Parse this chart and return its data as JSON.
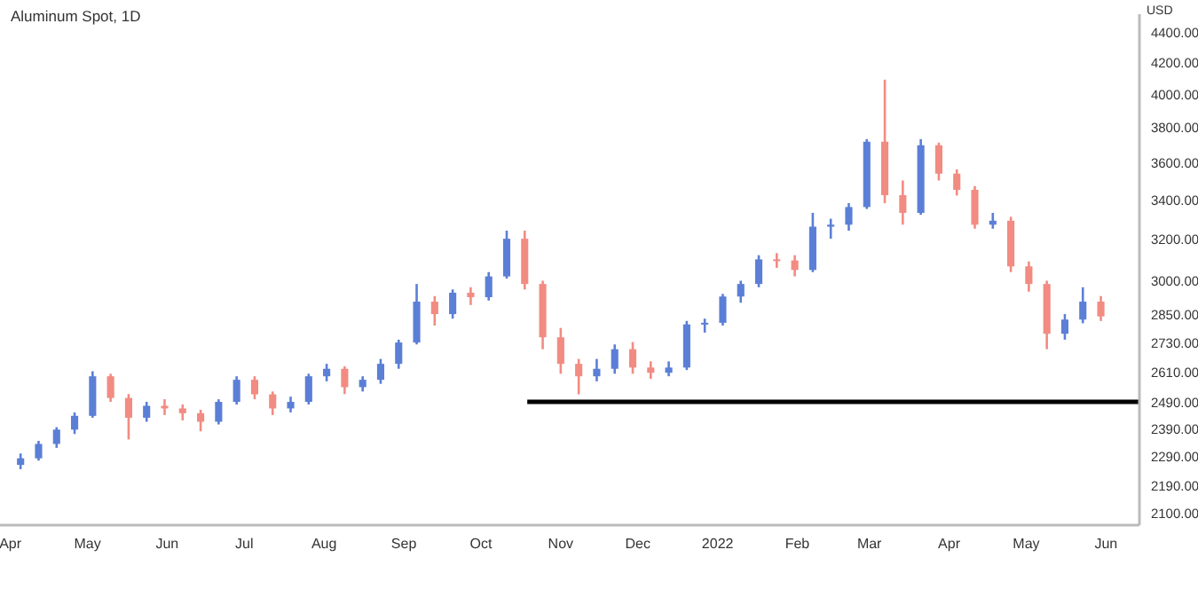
{
  "chart_data": {
    "type": "candlestick",
    "title": "Aluminum Spot, 1D",
    "ylabel": "USD",
    "log": true,
    "xlim": [
      "2021-03-28",
      "2022-06-14"
    ],
    "xticks": [
      {
        "value": "2021-04-01",
        "label": "Apr"
      },
      {
        "value": "2021-05-01",
        "label": "May"
      },
      {
        "value": "2021-06-01",
        "label": "Jun"
      },
      {
        "value": "2021-07-01",
        "label": "Jul"
      },
      {
        "value": "2021-08-01",
        "label": "Aug"
      },
      {
        "value": "2021-09-01",
        "label": "Sep"
      },
      {
        "value": "2021-10-01",
        "label": "Oct"
      },
      {
        "value": "2021-11-01",
        "label": "Nov"
      },
      {
        "value": "2021-12-01",
        "label": "Dec"
      },
      {
        "value": "2022-01-01",
        "label": "2022"
      },
      {
        "value": "2022-02-01",
        "label": "Feb"
      },
      {
        "value": "2022-03-01",
        "label": "Mar"
      },
      {
        "value": "2022-04-01",
        "label": "Apr"
      },
      {
        "value": "2022-05-01",
        "label": "May"
      },
      {
        "value": "2022-06-01",
        "label": "Jun"
      }
    ],
    "ylim": [
      2060,
      4520
    ],
    "yticks": [
      {
        "value": 2100,
        "label": "2100.00"
      },
      {
        "value": 2190,
        "label": "2190.00"
      },
      {
        "value": 2290,
        "label": "2290.00"
      },
      {
        "value": 2390,
        "label": "2390.00"
      },
      {
        "value": 2490,
        "label": "2490.00"
      },
      {
        "value": 2610,
        "label": "2610.00"
      },
      {
        "value": 2730,
        "label": "2730.00"
      },
      {
        "value": 2850,
        "label": "2850.00"
      },
      {
        "value": 3000,
        "label": "3000.00"
      },
      {
        "value": 3200,
        "label": "3200.00"
      },
      {
        "value": 3400,
        "label": "3400.00"
      },
      {
        "value": 3600,
        "label": "3600.00"
      },
      {
        "value": 3800,
        "label": "3800.00"
      },
      {
        "value": 4000,
        "label": "4000.00"
      },
      {
        "value": 4200,
        "label": "4200.00"
      },
      {
        "value": 4400,
        "label": "4400.00"
      }
    ],
    "x": [
      "2021-04-05",
      "2021-04-12",
      "2021-04-19",
      "2021-04-26",
      "2021-05-03",
      "2021-05-10",
      "2021-05-17",
      "2021-05-24",
      "2021-05-31",
      "2021-06-07",
      "2021-06-14",
      "2021-06-21",
      "2021-06-28",
      "2021-07-05",
      "2021-07-12",
      "2021-07-19",
      "2021-07-26",
      "2021-08-02",
      "2021-08-09",
      "2021-08-16",
      "2021-08-23",
      "2021-08-30",
      "2021-09-06",
      "2021-09-13",
      "2021-09-20",
      "2021-09-27",
      "2021-10-04",
      "2021-10-11",
      "2021-10-18",
      "2021-10-25",
      "2021-11-01",
      "2021-11-08",
      "2021-11-15",
      "2021-11-22",
      "2021-11-29",
      "2021-12-06",
      "2021-12-13",
      "2021-12-20",
      "2021-12-27",
      "2022-01-03",
      "2022-01-10",
      "2022-01-17",
      "2022-01-24",
      "2022-01-31",
      "2022-02-07",
      "2022-02-14",
      "2022-02-21",
      "2022-02-28",
      "2022-03-07",
      "2022-03-14",
      "2022-03-21",
      "2022-03-28",
      "2022-04-04",
      "2022-04-11",
      "2022-04-18",
      "2022-04-25",
      "2022-05-02",
      "2022-05-09",
      "2022-05-16",
      "2022-05-23",
      "2022-05-30"
    ],
    "ohlc": [
      [
        2260,
        2300,
        2245,
        2283
      ],
      [
        2283,
        2345,
        2275,
        2334
      ],
      [
        2334,
        2395,
        2320,
        2386
      ],
      [
        2386,
        2450,
        2370,
        2437
      ],
      [
        2437,
        2610,
        2430,
        2590
      ],
      [
        2590,
        2600,
        2490,
        2505
      ],
      [
        2505,
        2520,
        2350,
        2430
      ],
      [
        2430,
        2490,
        2415,
        2475
      ],
      [
        2475,
        2500,
        2440,
        2465
      ],
      [
        2465,
        2480,
        2420,
        2447
      ],
      [
        2447,
        2460,
        2380,
        2415
      ],
      [
        2415,
        2500,
        2405,
        2490
      ],
      [
        2490,
        2590,
        2480,
        2576
      ],
      [
        2576,
        2590,
        2500,
        2519
      ],
      [
        2519,
        2530,
        2440,
        2465
      ],
      [
        2465,
        2510,
        2450,
        2490
      ],
      [
        2490,
        2600,
        2480,
        2590
      ],
      [
        2590,
        2640,
        2570,
        2620
      ],
      [
        2620,
        2630,
        2520,
        2547
      ],
      [
        2547,
        2590,
        2530,
        2576
      ],
      [
        2576,
        2660,
        2560,
        2640
      ],
      [
        2640,
        2740,
        2620,
        2728
      ],
      [
        2728,
        2985,
        2720,
        2905
      ],
      [
        2905,
        2930,
        2800,
        2850
      ],
      [
        2850,
        2960,
        2830,
        2945
      ],
      [
        2945,
        2970,
        2890,
        2925
      ],
      [
        2925,
        3040,
        2910,
        3020
      ],
      [
        3020,
        3240,
        3010,
        3200
      ],
      [
        3200,
        3240,
        2960,
        2985
      ],
      [
        2985,
        3000,
        2700,
        2750
      ],
      [
        2750,
        2790,
        2600,
        2640
      ],
      [
        2640,
        2660,
        2519,
        2590
      ],
      [
        2590,
        2660,
        2570,
        2620
      ],
      [
        2620,
        2720,
        2600,
        2700
      ],
      [
        2700,
        2730,
        2600,
        2625
      ],
      [
        2625,
        2650,
        2580,
        2604
      ],
      [
        2604,
        2650,
        2590,
        2625
      ],
      [
        2625,
        2820,
        2615,
        2805
      ],
      [
        2805,
        2830,
        2770,
        2812
      ],
      [
        2812,
        2940,
        2800,
        2928
      ],
      [
        2928,
        3000,
        2900,
        2985
      ],
      [
        2985,
        3120,
        2970,
        3100
      ],
      [
        3100,
        3130,
        3060,
        3095
      ],
      [
        3095,
        3120,
        3020,
        3050
      ],
      [
        3050,
        3330,
        3040,
        3260
      ],
      [
        3260,
        3300,
        3200,
        3270
      ],
      [
        3270,
        3380,
        3240,
        3360
      ],
      [
        3360,
        3730,
        3350,
        3715
      ],
      [
        3715,
        4087,
        3380,
        3422
      ],
      [
        3422,
        3500,
        3270,
        3330
      ],
      [
        3330,
        3730,
        3320,
        3695
      ],
      [
        3695,
        3710,
        3500,
        3537
      ],
      [
        3537,
        3560,
        3420,
        3450
      ],
      [
        3450,
        3470,
        3250,
        3270
      ],
      [
        3270,
        3330,
        3250,
        3290
      ],
      [
        3290,
        3310,
        3040,
        3067
      ],
      [
        3067,
        3090,
        2950,
        2985
      ],
      [
        2985,
        3000,
        2700,
        2765
      ],
      [
        2765,
        2850,
        2740,
        2826
      ],
      [
        2826,
        2970,
        2810,
        2905
      ],
      [
        2905,
        2930,
        2820,
        2840
      ]
    ],
    "colors": [
      "#5b7fd6",
      "#5b7fd6",
      "#5b7fd6",
      "#5b7fd6",
      "#5b7fd6",
      "#f28b82",
      "#f28b82",
      "#5b7fd6",
      "#f28b82",
      "#f28b82",
      "#f28b82",
      "#5b7fd6",
      "#5b7fd6",
      "#f28b82",
      "#f28b82",
      "#5b7fd6",
      "#5b7fd6",
      "#5b7fd6",
      "#f28b82",
      "#5b7fd6",
      "#5b7fd6",
      "#5b7fd6",
      "#5b7fd6",
      "#f28b82",
      "#5b7fd6",
      "#f28b82",
      "#5b7fd6",
      "#5b7fd6",
      "#f28b82",
      "#f28b82",
      "#f28b82",
      "#f28b82",
      "#5b7fd6",
      "#5b7fd6",
      "#f28b82",
      "#f28b82",
      "#5b7fd6",
      "#5b7fd6",
      "#5b7fd6",
      "#5b7fd6",
      "#5b7fd6",
      "#5b7fd6",
      "#f28b82",
      "#f28b82",
      "#5b7fd6",
      "#5b7fd6",
      "#5b7fd6",
      "#5b7fd6",
      "#f28b82",
      "#f28b82",
      "#5b7fd6",
      "#f28b82",
      "#f28b82",
      "#f28b82",
      "#5b7fd6",
      "#f28b82",
      "#f28b82",
      "#f28b82",
      "#5b7fd6",
      "#5b7fd6",
      "#f28b82"
    ],
    "series": [
      {
        "type": "line",
        "x": [
          "2021-10-19",
          "2022-06-14"
        ],
        "values": [
          2490,
          2490
        ],
        "color": "#000000"
      }
    ]
  }
}
